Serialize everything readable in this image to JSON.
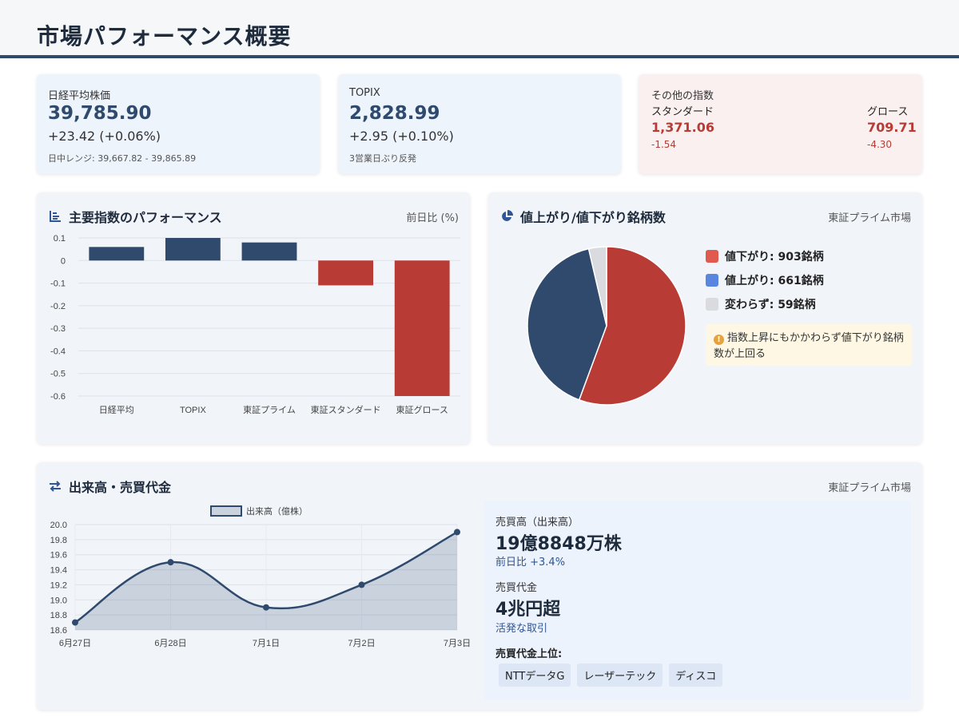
{
  "page": {
    "title": "市場パフォーマンス概要"
  },
  "nikkei": {
    "label": "日経平均株価",
    "value": "39,785.90",
    "change": "+23.42 (+0.06%)",
    "note": "日中レンジ: 39,667.82 - 39,865.89"
  },
  "topix": {
    "label": "TOPIX",
    "value": "2,828.99",
    "change": "+2.95 (+0.10%)",
    "note": "3営業日ぶり反発"
  },
  "others": {
    "title": "その他の指数",
    "standard": {
      "name": "スタンダード",
      "value": "1,371.06",
      "change": "-1.54"
    },
    "growth": {
      "name": "グロース",
      "value": "709.71",
      "change": "-4.30"
    }
  },
  "perf_panel": {
    "title": "主要指数のパフォーマンス",
    "note": "前日比 (%)",
    "icon": "bar-chart-icon"
  },
  "breadth_panel": {
    "title": "値上がり/値下がり銘柄数",
    "note": "東証プライム市場",
    "icon": "pie-chart-icon",
    "legend": [
      {
        "label": "値下がり: 903銘柄",
        "color": "#e05a4f"
      },
      {
        "label": "値上がり: 661銘柄",
        "color": "#5a86e0"
      },
      {
        "label": "変わらず: 59銘柄",
        "color": "#d9dbde"
      }
    ],
    "warning": "指数上昇にもかかわらず値下がり銘柄数が上回る"
  },
  "volume_panel": {
    "title": "出来高・売買代金",
    "note": "東証プライム市場",
    "icon": "exchange-arrows-icon",
    "volume_label": "売買高（出来高）",
    "volume_value": "19億8848万株",
    "volume_change": "前日比 +3.4%",
    "turnover_label": "売買代金",
    "turnover_value": "4兆円超",
    "turnover_note": "活発な取引",
    "top_label": "売買代金上位:",
    "top_stocks": [
      "NTTデータG",
      "レーザーテック",
      "ディスコ"
    ]
  },
  "colors": {
    "navy": "#2f4a6d",
    "red": "#b83c35",
    "pie_gray": "#d9dbde",
    "accent": "#2f5597"
  },
  "chart_data": [
    {
      "type": "bar",
      "categories": [
        "日経平均",
        "TOPIX",
        "東証プライム",
        "東証スタンダード",
        "東証グロース"
      ],
      "values": [
        0.06,
        0.1,
        0.08,
        -0.11,
        -0.6
      ],
      "ylim": [
        -0.6,
        0.1
      ],
      "yticks": [
        "0.1",
        "0",
        "-0.1",
        "-0.2",
        "-0.3",
        "-0.4",
        "-0.5",
        "-0.6"
      ],
      "colors": [
        "#2f4a6d",
        "#2f4a6d",
        "#2f4a6d",
        "#b83c35",
        "#b83c35"
      ],
      "grid": true
    },
    {
      "type": "pie",
      "labels": [
        "値下がり",
        "値上がり",
        "変わらず"
      ],
      "values": [
        903,
        661,
        59
      ],
      "colors": [
        "#b83c35",
        "#2f4a6d",
        "#d9dbde"
      ]
    },
    {
      "type": "area",
      "x": [
        "6月27日",
        "6月28日",
        "7月1日",
        "7月2日",
        "7月3日"
      ],
      "series": [
        {
          "name": "出来高（億株）",
          "values": [
            18.7,
            19.5,
            18.9,
            19.2,
            19.9
          ]
        }
      ],
      "ylim": [
        18.6,
        20.0
      ],
      "yticks": [
        "20.0",
        "19.8",
        "19.6",
        "19.4",
        "19.2",
        "19.0",
        "18.8",
        "18.6"
      ],
      "legend": "top-center",
      "grid": true
    }
  ]
}
